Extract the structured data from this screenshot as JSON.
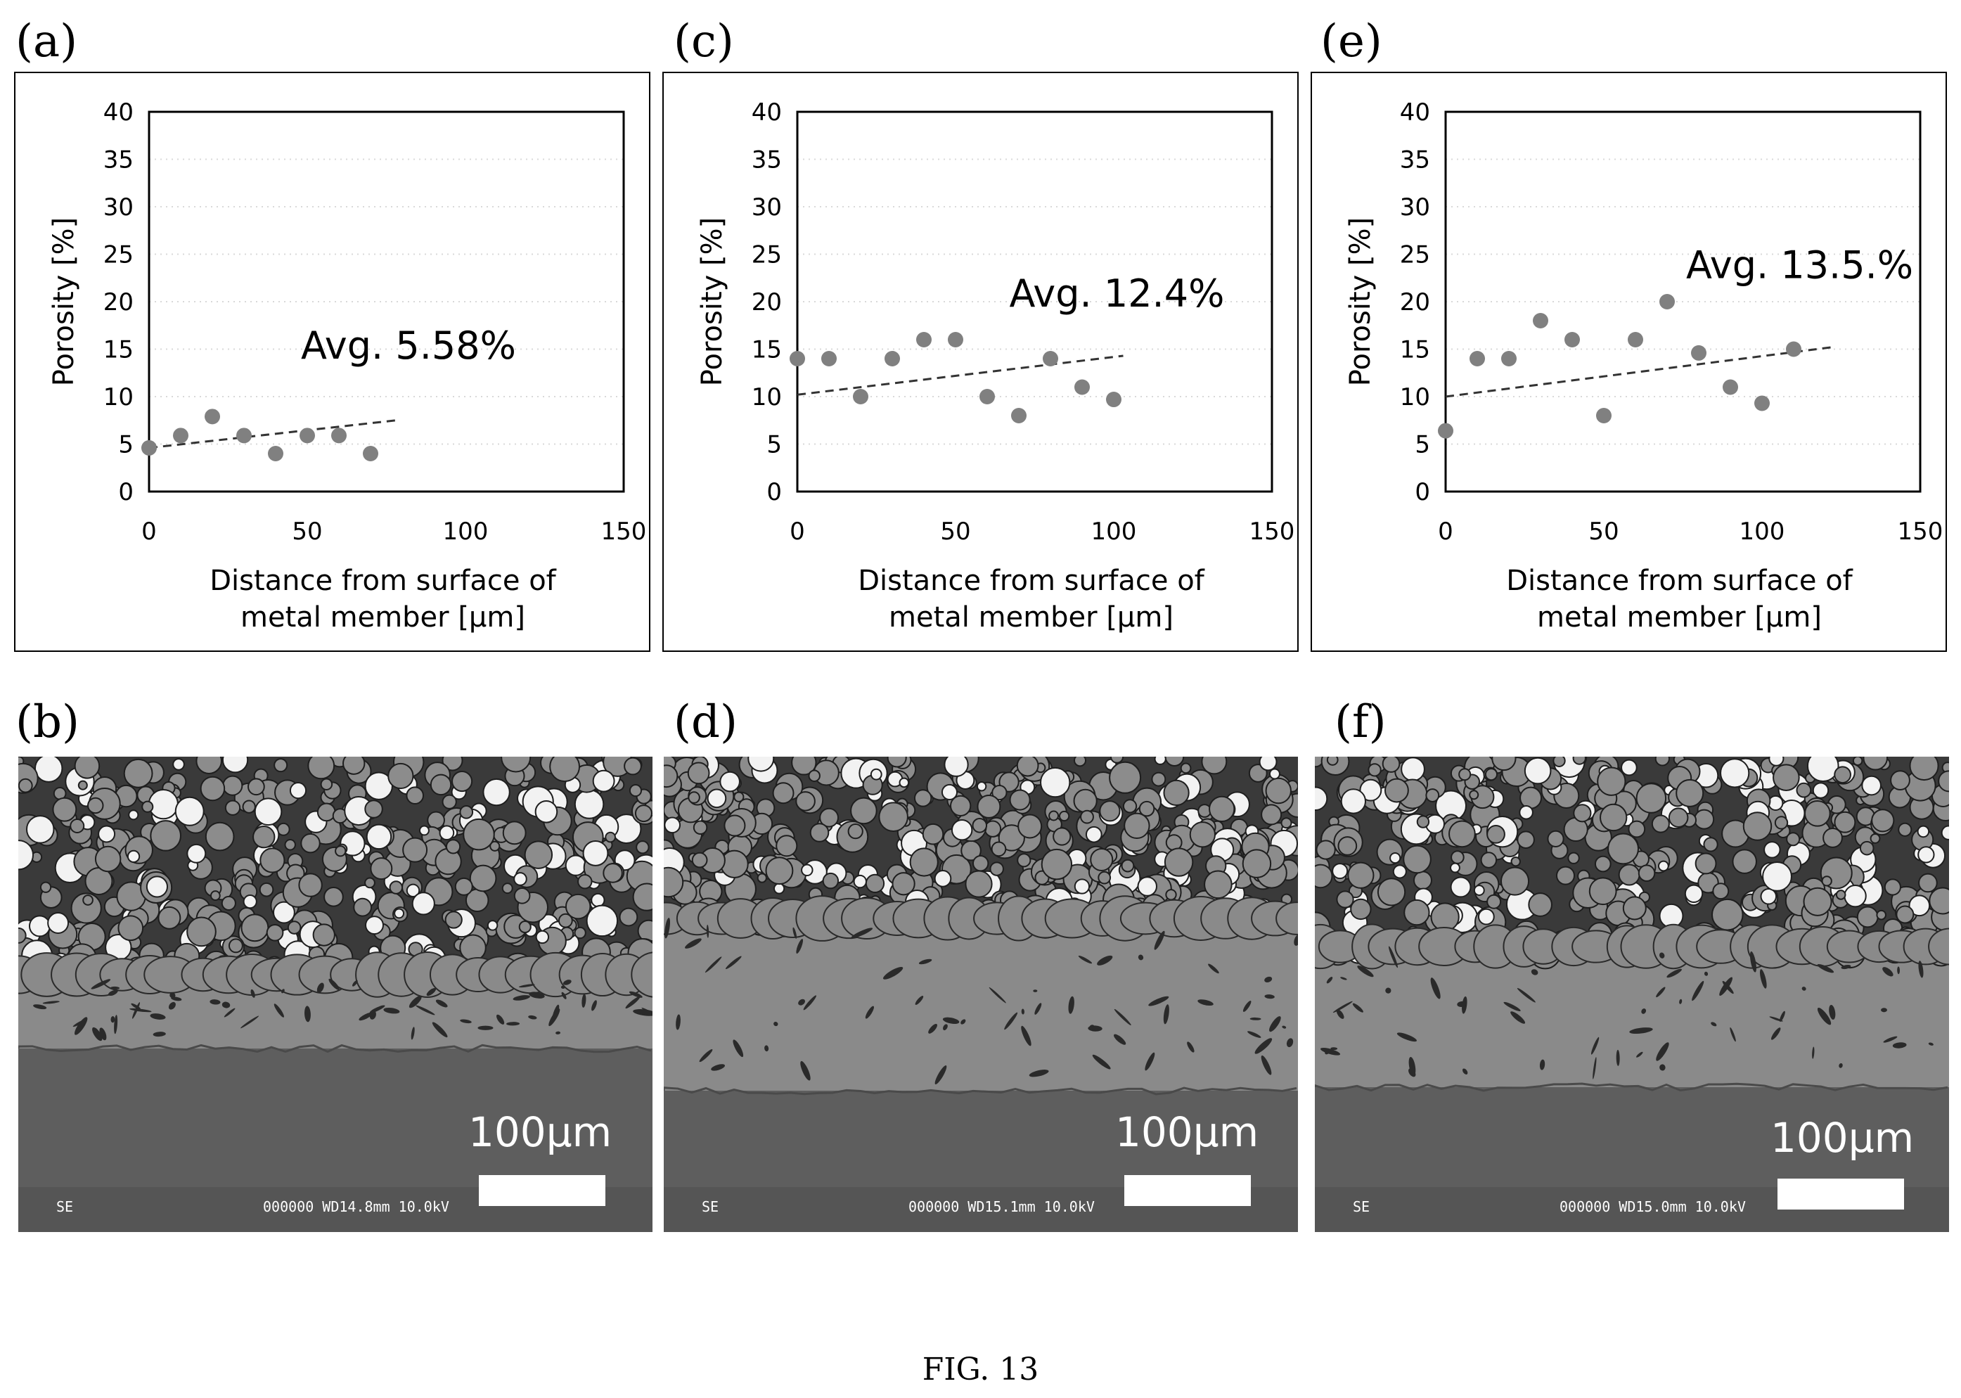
{
  "figure_caption": "FIG. 13",
  "chart_data": [
    {
      "panel": "(a)",
      "type": "scatter",
      "xlabel_line1": "Distance from surface of",
      "xlabel_line2": "metal member [μm]",
      "ylabel": "Porosity [%]",
      "xlim": [
        0,
        150
      ],
      "ylim": [
        0,
        40
      ],
      "xticks": [
        0,
        50,
        100,
        150
      ],
      "yticks": [
        0,
        5,
        10,
        15,
        20,
        25,
        30,
        35,
        40
      ],
      "x": [
        0,
        10,
        20,
        30,
        40,
        50,
        60,
        70
      ],
      "y": [
        4.6,
        5.9,
        7.9,
        5.9,
        4.0,
        5.9,
        5.9,
        4.0
      ],
      "trendline": {
        "x": [
          0,
          78
        ],
        "y": [
          4.6,
          7.5
        ]
      },
      "annotation": "Avg. 5.58%",
      "annotation_pos": [
        48,
        14
      ]
    },
    {
      "panel": "(c)",
      "type": "scatter",
      "xlabel_line1": "Distance from surface of",
      "xlabel_line2": "metal member [μm]",
      "ylabel": "Porosity [%]",
      "xlim": [
        0,
        150
      ],
      "ylim": [
        0,
        40
      ],
      "xticks": [
        0,
        50,
        100,
        150
      ],
      "yticks": [
        0,
        5,
        10,
        15,
        20,
        25,
        30,
        35,
        40
      ],
      "x": [
        0,
        10,
        20,
        30,
        40,
        50,
        60,
        70,
        80,
        90,
        100
      ],
      "y": [
        14.0,
        14.0,
        10.0,
        14.0,
        16.0,
        16.0,
        10.0,
        8.0,
        14.0,
        11.0,
        9.7
      ],
      "trendline": {
        "x": [
          0,
          103
        ],
        "y": [
          10.2,
          14.3
        ]
      },
      "annotation": "Avg. 12.4%",
      "annotation_pos": [
        67,
        19.5
      ]
    },
    {
      "panel": "(e)",
      "type": "scatter",
      "xlabel_line1": "Distance from surface of",
      "xlabel_line2": "metal member [μm]",
      "ylabel": "Porosity [%]",
      "xlim": [
        0,
        150
      ],
      "ylim": [
        0,
        40
      ],
      "xticks": [
        0,
        50,
        100,
        150
      ],
      "yticks": [
        0,
        5,
        10,
        15,
        20,
        25,
        30,
        35,
        40
      ],
      "x": [
        0,
        10,
        20,
        30,
        40,
        50,
        60,
        70,
        80,
        90,
        100,
        110
      ],
      "y": [
        6.4,
        14.0,
        14.0,
        18.0,
        16.0,
        8.0,
        16.0,
        20.0,
        14.6,
        11.0,
        9.3,
        15.0
      ],
      "trendline": {
        "x": [
          0,
          122
        ],
        "y": [
          10.0,
          15.2
        ]
      },
      "annotation": "Avg. 13.5.%",
      "annotation_pos": [
        76,
        22.5
      ]
    }
  ],
  "panels": {
    "a": "(a)",
    "b": "(b)",
    "c": "(c)",
    "d": "(d)",
    "e": "(e)",
    "f": "(f)"
  },
  "sem_images": [
    {
      "panel": "(b)",
      "scale_label": "100μm",
      "detector": "SE",
      "params": "000000 WD14.8mm 10.0kV"
    },
    {
      "panel": "(d)",
      "scale_label": "100μm",
      "detector": "SE",
      "params": "000000 WD15.1mm 10.0kV"
    },
    {
      "panel": "(f)",
      "scale_label": "100μm",
      "detector": "SE",
      "params": "000000 WD15.0mm 10.0kV"
    }
  ],
  "colors": {
    "marker": "#808080",
    "trendline": "#333333",
    "gridline": "#d9d9d9",
    "sem_coating": "#8a8a8a",
    "sem_substrate": "#5e5e5e",
    "sem_pores": "#2a2a2a"
  }
}
